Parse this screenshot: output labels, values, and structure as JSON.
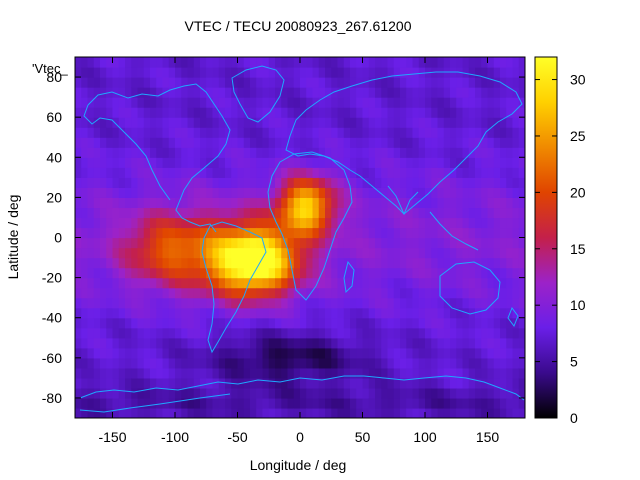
{
  "chart_data": {
    "type": "heatmap",
    "title": "VTEC / TECU 20080923_267.61200",
    "xlabel": "Longitude / deg",
    "ylabel": "Latitude / deg",
    "legend_label": "'Vtec_",
    "xlim": [
      -180,
      180
    ],
    "ylim": [
      -90,
      90
    ],
    "xticks": [
      -150,
      -100,
      -50,
      0,
      50,
      100,
      150
    ],
    "yticks": [
      -80,
      -60,
      -40,
      -20,
      0,
      20,
      40,
      60,
      80
    ],
    "colorbar": {
      "range": [
        0,
        32
      ],
      "ticks": [
        0,
        5,
        10,
        15,
        20,
        25,
        30
      ],
      "palette": [
        "#000000",
        "#3a0a8c",
        "#6a1fe8",
        "#9c22c8",
        "#c4204a",
        "#e04400",
        "#f08a00",
        "#ffd000",
        "#ffff28"
      ]
    },
    "field": {
      "background_tecu": 7,
      "features": [
        {
          "name": "south-america-crest",
          "lon": -35,
          "lat": -12,
          "peak_tecu": 31
        },
        {
          "name": "africa-crest",
          "lon": 5,
          "lat": 16,
          "peak_tecu": 28
        },
        {
          "name": "equatorial-band-west",
          "lon": -110,
          "lat": -5,
          "peak_tecu": 15
        },
        {
          "name": "southern-mid-latitude-trough",
          "lon": -10,
          "lat": -60,
          "peak_tecu": 2
        }
      ]
    },
    "overlay": "coastlines",
    "cell_size_deg": 5
  }
}
